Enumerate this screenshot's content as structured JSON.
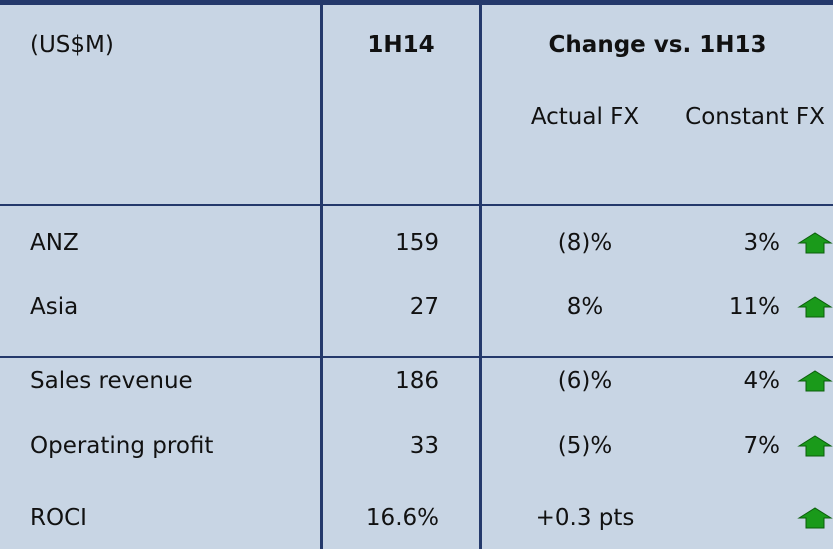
{
  "header": {
    "unit": "(US$M)",
    "period": "1H14",
    "change": "Change vs. 1H13",
    "actual_fx": "Actual FX",
    "constant_fx": "Constant FX"
  },
  "table": {
    "rows": [
      {
        "label": "ANZ",
        "value": "159",
        "actual": "(8)%",
        "constant": "3%"
      },
      {
        "label": "Asia",
        "value": "27",
        "actual": "8%",
        "constant": "11%"
      },
      {
        "label": "Sales revenue",
        "value": "186",
        "actual": "(6)%",
        "constant": "4%"
      },
      {
        "label": "Operating profit",
        "value": "33",
        "actual": "(5)%",
        "constant": "7%"
      },
      {
        "label": "ROCI",
        "value": "16.6%",
        "actual": "+0.3 pts"
      }
    ]
  }
}
